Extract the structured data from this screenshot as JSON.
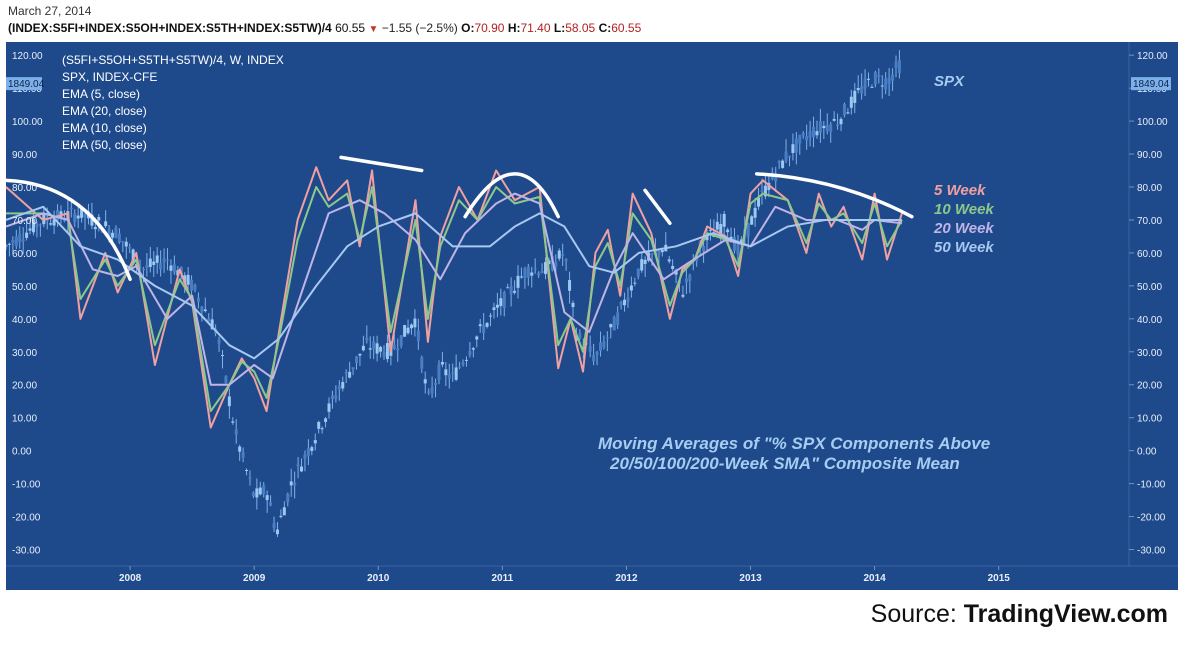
{
  "header": {
    "date": "March 27, 2014",
    "symbol": "(INDEX:S5FI+INDEX:S5OH+INDEX:S5TH+INDEX:S5TW)/4",
    "last": "60.55",
    "change": "−1.55 (−2.5%)",
    "open_label": "O:",
    "open": "70.90",
    "high_label": "H:",
    "high": "71.40",
    "low_label": "L:",
    "low": "58.05",
    "close_label": "C:",
    "close": "60.55"
  },
  "legend": {
    "title": "(S5FI+S5OH+S5TH+S5TW)/4, W, INDEX",
    "items": [
      "SPX, INDEX-CFE",
      "EMA (5, close)",
      "EMA (20, close)",
      "EMA (10, close)",
      "EMA (50, close)"
    ]
  },
  "price_badge": "1849.04",
  "source": {
    "prefix": "Source: ",
    "brand": "TradingView.com"
  },
  "colors": {
    "background": "#1e4a8c",
    "ema5": "#f0a0a0",
    "ema10": "#8cc88c",
    "ema20": "#c0b4e6",
    "ema50": "#a8c8f0",
    "spx": "#9cc8f4",
    "annotation": "#a6cdf0"
  },
  "chart_data": {
    "type": "line",
    "title": "Moving Averages of \"% SPX Components Above 20/50/100/200-Week SMA\" Composite Mean",
    "annotation_lines": [
      "Moving Averages of \"% SPX Components Above",
      "20/50/100/200-Week SMA\" Composite Mean"
    ],
    "x_ticks": [
      "2008",
      "2009",
      "2010",
      "2011",
      "2012",
      "2013",
      "2014",
      "2015"
    ],
    "xlim": [
      2007.0,
      2016.05
    ],
    "y_ticks": [
      "120.00",
      "110.00",
      "100.00",
      "90.00",
      "80.00",
      "70.00",
      "60.00",
      "50.00",
      "40.00",
      "30.00",
      "20.00",
      "10.00",
      "0.00",
      "-10.00",
      "-20.00",
      "-30.00"
    ],
    "ylim": [
      -35,
      124
    ],
    "series": [
      {
        "name": "5 Week",
        "color": "#f0a0a0",
        "x": [
          2007.0,
          2007.3,
          2007.5,
          2007.6,
          2007.8,
          2007.9,
          2008.05,
          2008.2,
          2008.4,
          2008.5,
          2008.65,
          2008.8,
          2008.9,
          2009.0,
          2009.1,
          2009.2,
          2009.35,
          2009.5,
          2009.6,
          2009.75,
          2009.85,
          2009.95,
          2010.1,
          2010.3,
          2010.4,
          2010.5,
          2010.65,
          2010.8,
          2010.95,
          2011.1,
          2011.3,
          2011.45,
          2011.55,
          2011.65,
          2011.75,
          2011.85,
          2011.95,
          2012.05,
          2012.2,
          2012.35,
          2012.45,
          2012.55,
          2012.65,
          2012.8,
          2012.9,
          2013.0,
          2013.1,
          2013.3,
          2013.45,
          2013.55,
          2013.65,
          2013.75,
          2013.9,
          2014.0,
          2014.1,
          2014.22
        ],
        "y": [
          80,
          70,
          72,
          40,
          60,
          48,
          60,
          26,
          55,
          45,
          7,
          20,
          28,
          22,
          12,
          36,
          70,
          86,
          76,
          82,
          62,
          85,
          30,
          76,
          33,
          65,
          80,
          70,
          85,
          76,
          80,
          25,
          40,
          24,
          60,
          67,
          47,
          78,
          66,
          40,
          55,
          58,
          68,
          65,
          53,
          78,
          82,
          76,
          60,
          78,
          68,
          74,
          58,
          78,
          58,
          72
        ]
      },
      {
        "name": "10 Week",
        "color": "#8cc88c",
        "x": [
          2007.0,
          2007.3,
          2007.5,
          2007.6,
          2007.8,
          2007.9,
          2008.05,
          2008.2,
          2008.4,
          2008.5,
          2008.65,
          2008.8,
          2008.9,
          2009.0,
          2009.1,
          2009.2,
          2009.35,
          2009.5,
          2009.6,
          2009.75,
          2009.85,
          2009.95,
          2010.1,
          2010.3,
          2010.4,
          2010.5,
          2010.65,
          2010.8,
          2010.95,
          2011.1,
          2011.3,
          2011.45,
          2011.55,
          2011.65,
          2011.75,
          2011.85,
          2011.95,
          2012.05,
          2012.2,
          2012.35,
          2012.45,
          2012.55,
          2012.65,
          2012.8,
          2012.9,
          2013.0,
          2013.1,
          2013.3,
          2013.45,
          2013.55,
          2013.65,
          2013.75,
          2013.9,
          2014.0,
          2014.1,
          2014.22
        ],
        "y": [
          72,
          72,
          70,
          46,
          58,
          50,
          58,
          32,
          52,
          46,
          12,
          20,
          27,
          24,
          16,
          34,
          64,
          80,
          74,
          78,
          64,
          80,
          36,
          70,
          40,
          62,
          76,
          70,
          80,
          75,
          77,
          32,
          40,
          30,
          56,
          63,
          50,
          72,
          64,
          44,
          54,
          58,
          66,
          64,
          56,
          75,
          78,
          76,
          63,
          75,
          70,
          72,
          63,
          75,
          62,
          70
        ]
      },
      {
        "name": "20 Week",
        "color": "#c0b4e6",
        "x": [
          2007.0,
          2007.3,
          2007.5,
          2007.7,
          2007.9,
          2008.05,
          2008.3,
          2008.5,
          2008.65,
          2008.8,
          2009.0,
          2009.15,
          2009.4,
          2009.6,
          2009.85,
          2010.05,
          2010.3,
          2010.5,
          2010.7,
          2010.95,
          2011.1,
          2011.3,
          2011.5,
          2011.7,
          2011.9,
          2012.05,
          2012.3,
          2012.5,
          2012.8,
          2013.0,
          2013.2,
          2013.45,
          2013.7,
          2013.9,
          2014.0,
          2014.22
        ],
        "y": [
          68,
          72,
          70,
          55,
          53,
          56,
          40,
          47,
          20,
          20,
          26,
          22,
          50,
          72,
          76,
          72,
          64,
          52,
          66,
          75,
          78,
          75,
          42,
          36,
          55,
          66,
          52,
          57,
          64,
          62,
          74,
          70,
          70,
          67,
          70,
          69
        ]
      },
      {
        "name": "50 Week",
        "color": "#a8c8f0",
        "x": [
          2007.0,
          2007.3,
          2007.6,
          2007.9,
          2008.2,
          2008.5,
          2008.8,
          2009.0,
          2009.2,
          2009.5,
          2009.75,
          2010.0,
          2010.3,
          2010.6,
          2010.9,
          2011.1,
          2011.3,
          2011.5,
          2011.7,
          2011.9,
          2012.1,
          2012.4,
          2012.7,
          2013.0,
          2013.3,
          2013.6,
          2013.9,
          2014.22
        ],
        "y": [
          70,
          74,
          62,
          58,
          50,
          44,
          32,
          28,
          34,
          50,
          62,
          68,
          72,
          62,
          62,
          68,
          72,
          68,
          56,
          54,
          60,
          62,
          66,
          62,
          68,
          70,
          70,
          70
        ]
      },
      {
        "name": "SPX",
        "color": "#9cc8f4",
        "x": [
          2007.0,
          2007.3,
          2007.6,
          2007.9,
          2008.1,
          2008.3,
          2008.5,
          2008.7,
          2008.85,
          2009.0,
          2009.1,
          2009.18,
          2009.3,
          2009.5,
          2009.7,
          2009.9,
          2010.1,
          2010.3,
          2010.4,
          2010.5,
          2010.6,
          2010.8,
          2011.0,
          2011.2,
          2011.35,
          2011.5,
          2011.6,
          2011.75,
          2011.9,
          2012.1,
          2012.3,
          2012.45,
          2012.6,
          2012.8,
          2012.9,
          2013.1,
          2013.3,
          2013.5,
          2013.7,
          2013.9,
          2014.0,
          2014.1,
          2014.2
        ],
        "y": [
          62,
          70,
          72,
          66,
          55,
          58,
          50,
          36,
          5,
          -14,
          -12,
          -25,
          -10,
          5,
          20,
          32,
          30,
          40,
          15,
          25,
          22,
          35,
          45,
          55,
          55,
          60,
          35,
          28,
          38,
          55,
          62,
          48,
          62,
          70,
          60,
          78,
          90,
          97,
          100,
          110,
          113,
          112,
          117
        ]
      }
    ],
    "series_labels": [
      {
        "text": "SPX",
        "color": "#a6cdf0"
      },
      {
        "text": "5 Week",
        "color": "#f0a0a0"
      },
      {
        "text": "10 Week",
        "color": "#8cc88c"
      },
      {
        "text": "20 Week",
        "color": "#c0b4e6"
      },
      {
        "text": "50 Week",
        "color": "#a8c8f0"
      }
    ],
    "trend_arcs": [
      {
        "kind": "arc",
        "points": [
          [
            2007.0,
            82
          ],
          [
            2007.6,
            74
          ],
          [
            2008.0,
            52
          ]
        ]
      },
      {
        "kind": "line",
        "points": [
          [
            2009.7,
            89
          ],
          [
            2010.35,
            85
          ]
        ]
      },
      {
        "kind": "arc",
        "points": [
          [
            2010.7,
            71
          ],
          [
            2011.1,
            84
          ],
          [
            2011.45,
            71
          ]
        ]
      },
      {
        "kind": "line",
        "points": [
          [
            2012.15,
            79
          ],
          [
            2012.35,
            69
          ]
        ]
      },
      {
        "kind": "arc",
        "points": [
          [
            2013.05,
            84
          ],
          [
            2013.7,
            80
          ],
          [
            2014.3,
            71
          ]
        ]
      }
    ]
  }
}
